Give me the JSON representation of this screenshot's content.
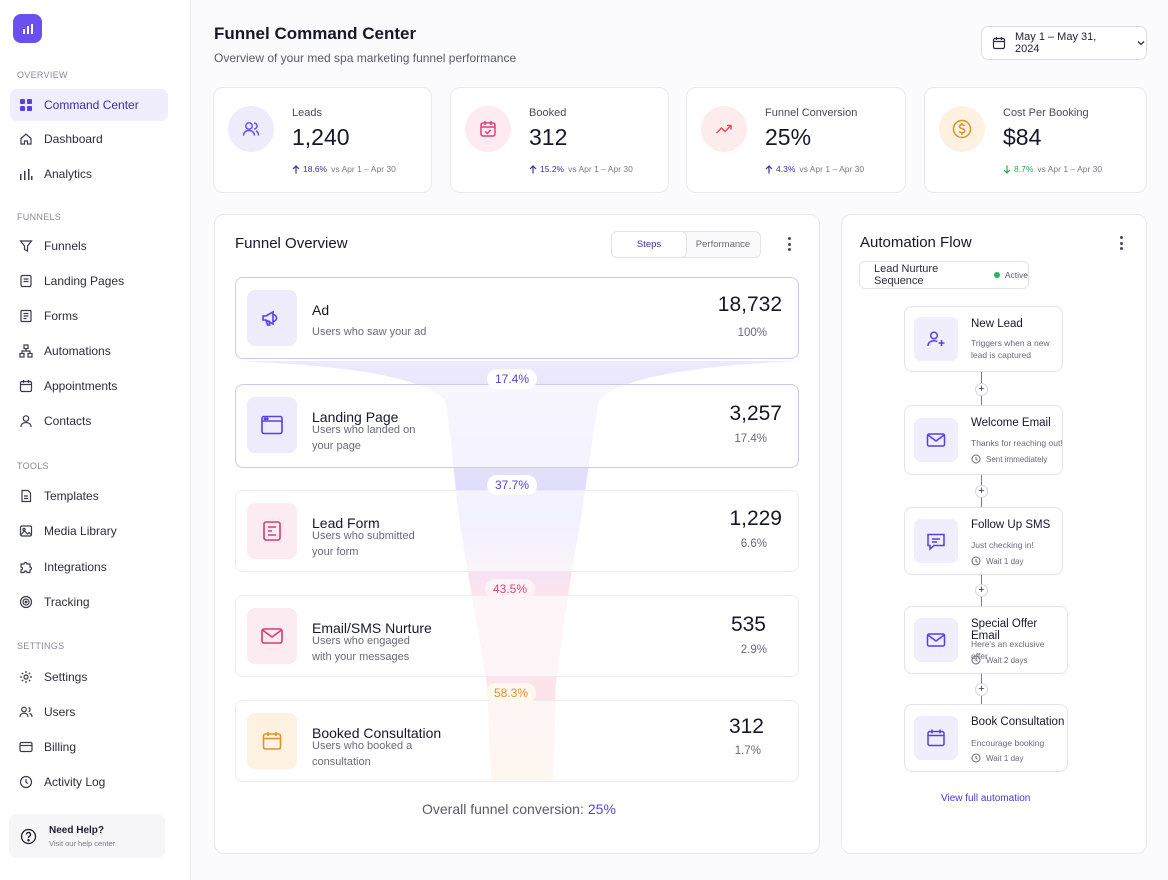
{
  "sidebar": {
    "sections": [
      {
        "label": "OVERVIEW",
        "items": [
          {
            "label": "Command Center",
            "icon": "grid-icon",
            "active": true
          },
          {
            "label": "Dashboard",
            "icon": "home-icon"
          },
          {
            "label": "Analytics",
            "icon": "bar-chart-icon"
          }
        ]
      },
      {
        "label": "FUNNELS",
        "items": [
          {
            "label": "Funnels",
            "icon": "filter-icon"
          },
          {
            "label": "Landing Pages",
            "icon": "page-icon"
          },
          {
            "label": "Forms",
            "icon": "form-icon"
          },
          {
            "label": "Automations",
            "icon": "flow-icon"
          },
          {
            "label": "Appointments",
            "icon": "calendar-icon"
          },
          {
            "label": "Contacts",
            "icon": "user-icon"
          }
        ]
      },
      {
        "label": "TOOLS",
        "items": [
          {
            "label": "Templates",
            "icon": "template-icon"
          },
          {
            "label": "Media Library",
            "icon": "image-icon"
          },
          {
            "label": "Integrations",
            "icon": "puzzle-icon"
          },
          {
            "label": "Tracking",
            "icon": "target-icon"
          }
        ]
      },
      {
        "label": "SETTINGS",
        "items": [
          {
            "label": "Settings",
            "icon": "gear-icon"
          },
          {
            "label": "Users",
            "icon": "users-icon"
          },
          {
            "label": "Billing",
            "icon": "card-icon"
          },
          {
            "label": "Activity Log",
            "icon": "clock-icon"
          }
        ]
      }
    ],
    "help": {
      "title": "Need Help?",
      "subtitle": "Visit our help center"
    }
  },
  "header": {
    "title": "Funnel Command Center",
    "subtitle": "Overview of your med spa marketing funnel performance",
    "date_range": "May 1 – May 31, 2024"
  },
  "kpis": [
    {
      "label": "Leads",
      "value": "1,240",
      "change": "18.6%",
      "direction": "up",
      "compare": "vs Apr 1 – Apr 30",
      "color": "#6b4ff0"
    },
    {
      "label": "Booked",
      "value": "312",
      "change": "15.2%",
      "direction": "up",
      "compare": "vs Apr 1 – Apr 30",
      "color": "#e0407a"
    },
    {
      "label": "Funnel Conversion",
      "value": "25%",
      "change": "4.3%",
      "direction": "up",
      "compare": "vs Apr 1 – Apr 30",
      "color": "#e84a5f"
    },
    {
      "label": "Cost Per Booking",
      "value": "$84",
      "change": "8.7%",
      "direction": "down",
      "compare": "vs Apr 1 – Apr 30",
      "color": "#e0922a"
    }
  ],
  "funnel": {
    "title": "Funnel Overview",
    "tabs": [
      {
        "label": "Steps",
        "active": true
      },
      {
        "label": "Performance",
        "active": false
      }
    ],
    "stages": [
      {
        "name": "Ad",
        "desc": "Users who saw your ad",
        "value": "18,732",
        "pct": "100%"
      },
      {
        "name": "Landing Page",
        "desc": "Users who landed on your page",
        "value": "3,257",
        "pct": "17.4%"
      },
      {
        "name": "Lead Form",
        "desc": "Users who submitted your form",
        "value": "1,229",
        "pct": "6.6%"
      },
      {
        "name": "Email/SMS Nurture",
        "desc": "Users who engaged with your messages",
        "value": "535",
        "pct": "2.9%"
      },
      {
        "name": "Booked Consultation",
        "desc": "Users who booked a consultation",
        "value": "312",
        "pct": "1.7%"
      }
    ],
    "rates": [
      "17.4%",
      "37.7%",
      "43.5%",
      "58.3%"
    ],
    "overall_label": "Overall funnel conversion:",
    "overall_value": "25%"
  },
  "automation": {
    "title": "Automation Flow",
    "sequence": "Lead Nurture Sequence",
    "status": "Active",
    "nodes": [
      {
        "title": "New Lead",
        "subtitle": "Triggers when a new lead is captured",
        "wait": "",
        "icon": "user-plus-icon"
      },
      {
        "title": "Welcome Email",
        "subtitle": "Thanks for reaching out!",
        "wait": "Sent immediately",
        "icon": "mail-icon"
      },
      {
        "title": "Follow Up SMS",
        "subtitle": "Just checking in!",
        "wait": "Wait 1 day",
        "icon": "chat-icon"
      },
      {
        "title": "Special Offer Email",
        "subtitle": "Here's an exclusive offer",
        "wait": "Wait 2 days",
        "icon": "mail-icon"
      },
      {
        "title": "Book Consultation",
        "subtitle": "Encourage booking",
        "wait": "Wait 1 day",
        "icon": "calendar-icon"
      }
    ],
    "view_link": "View full automation"
  }
}
